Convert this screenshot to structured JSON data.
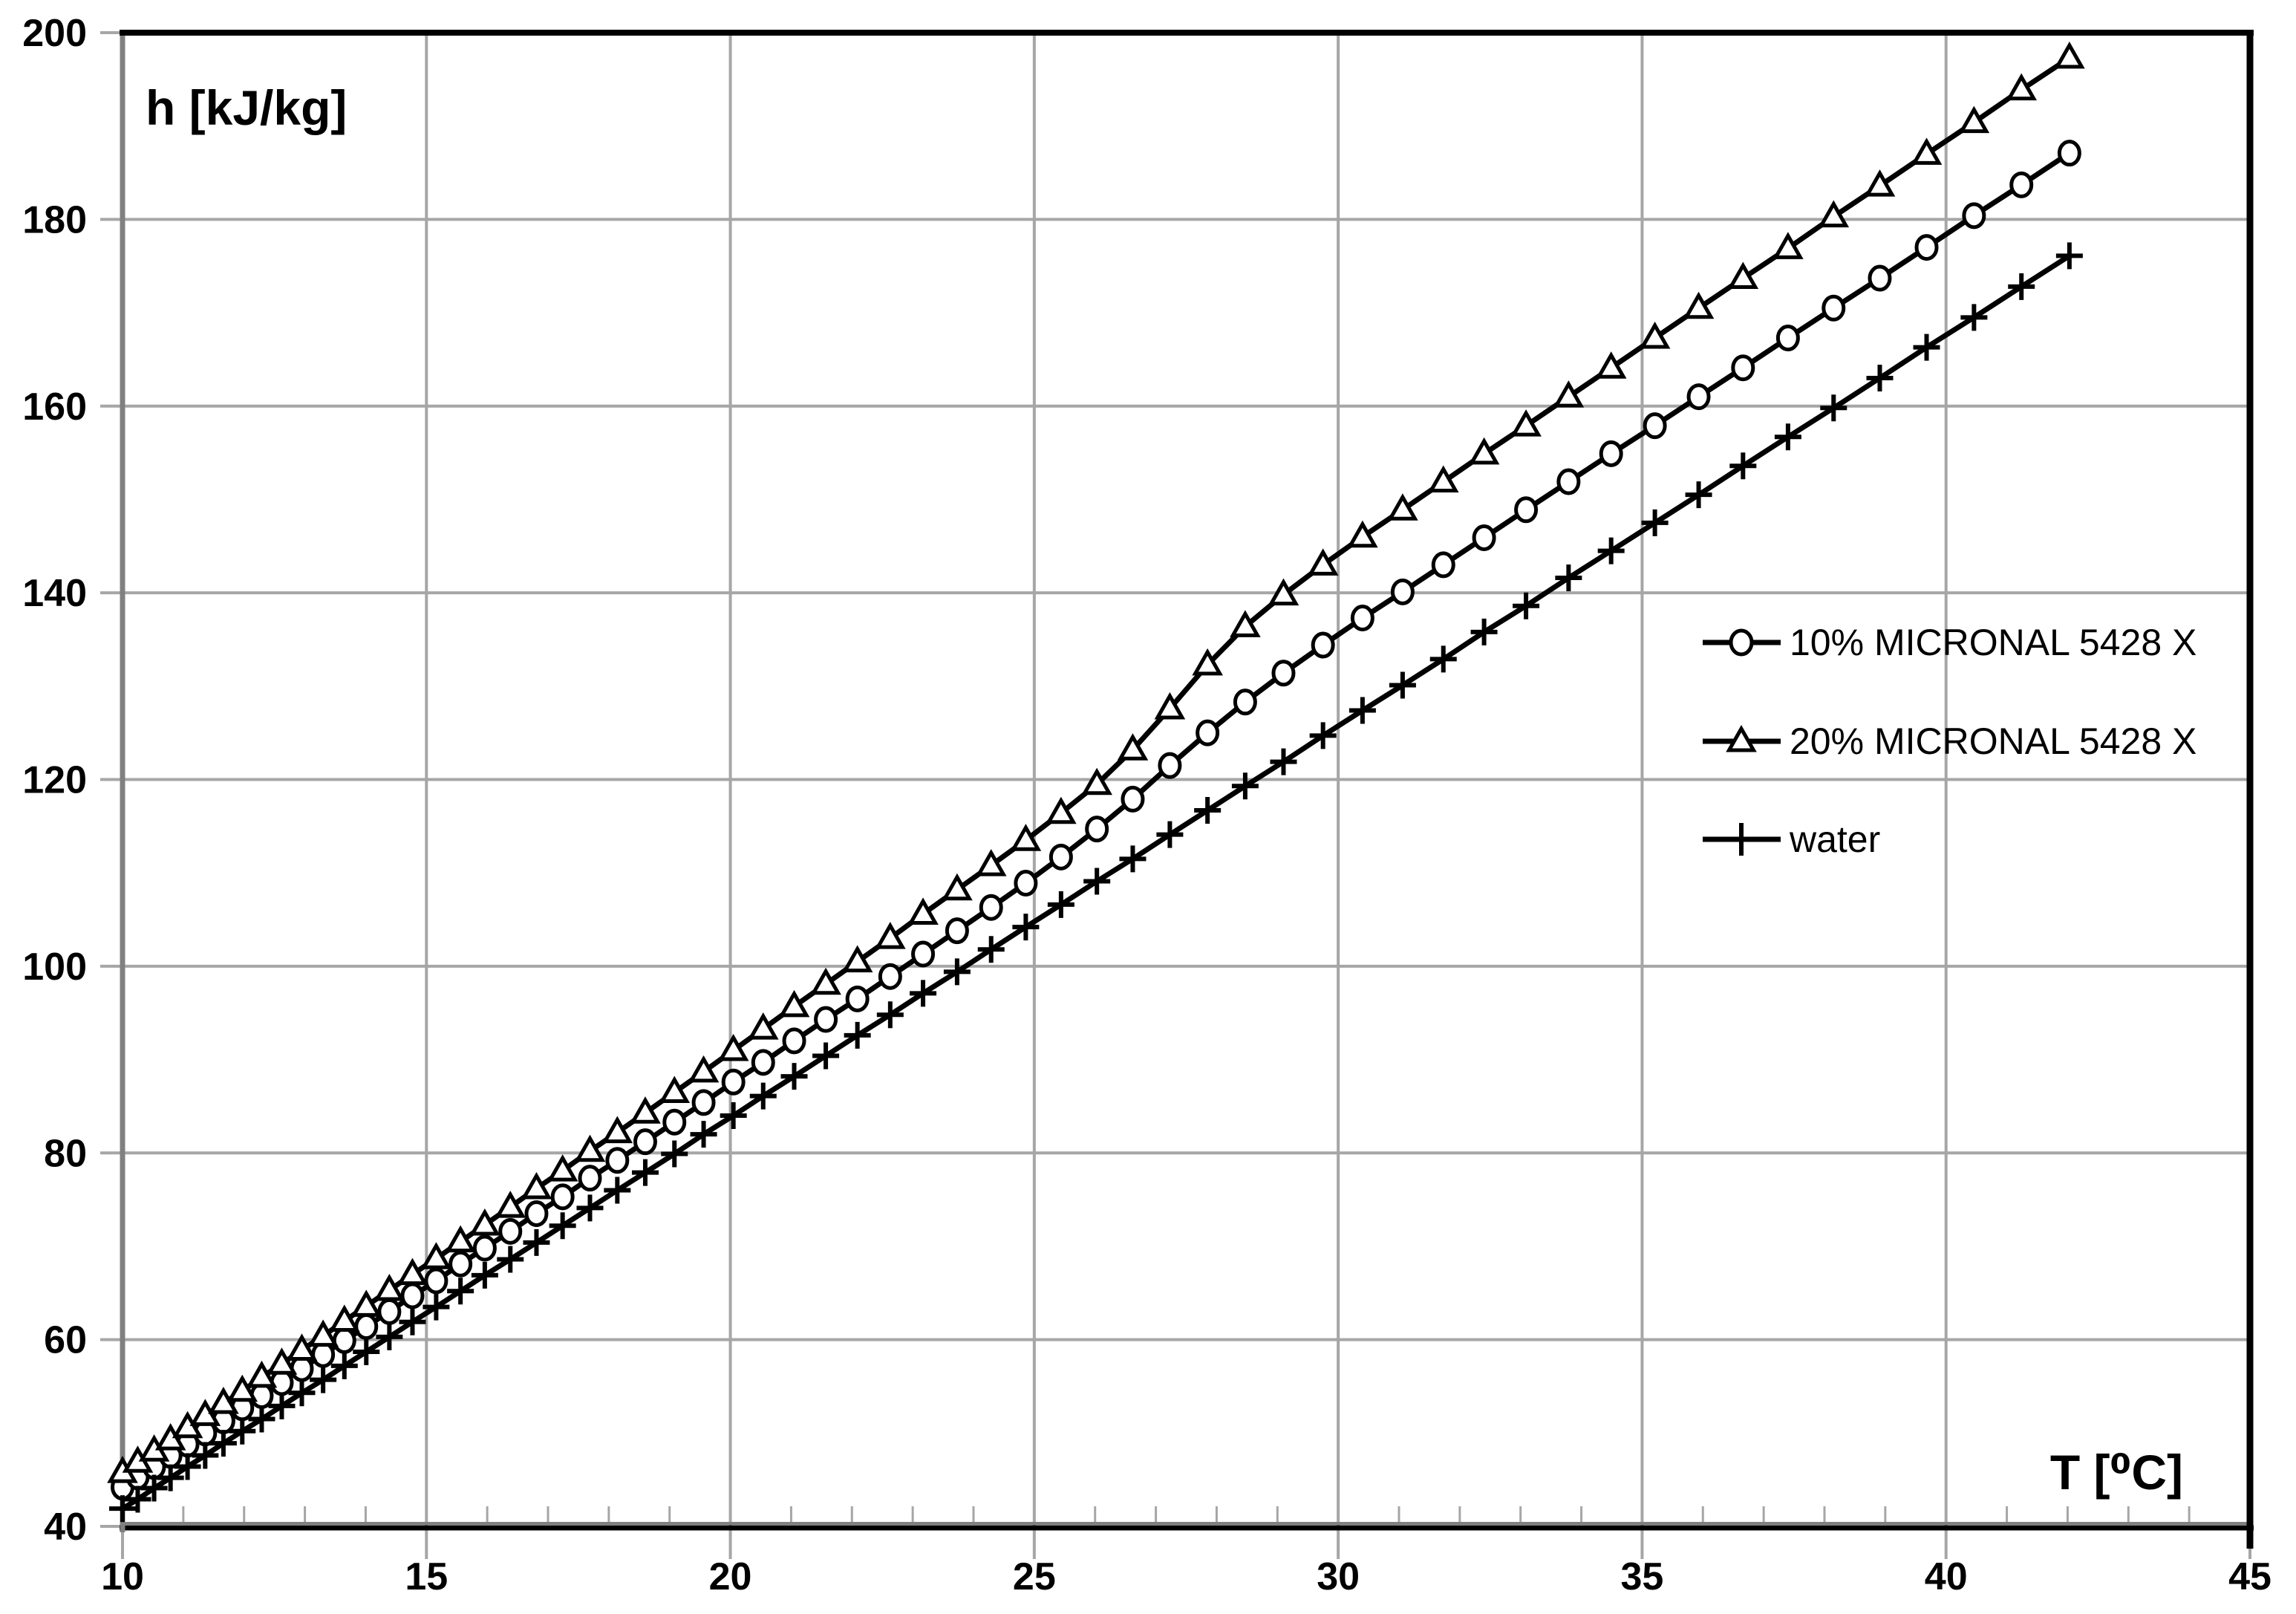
{
  "chart_data": {
    "type": "line",
    "title": "",
    "x_label": "T [⁰C]",
    "y_label": "h [kJ/kg]",
    "xlim": [
      10,
      45
    ],
    "ylim": [
      40,
      200
    ],
    "x_ticks": [
      10,
      15,
      20,
      25,
      30,
      35,
      40,
      45
    ],
    "y_ticks": [
      40,
      60,
      80,
      100,
      120,
      140,
      160,
      180,
      200
    ],
    "x_minor_tick_step": 1,
    "grid": true,
    "grid_color": "#a6a6a6",
    "axis_color": "#808080",
    "frame_color": "#000000",
    "series_color": "#000000",
    "legend_position": "right-middle",
    "series": [
      {
        "name": "10% MICRONAL 5428 X",
        "marker": "circle",
        "color": "#000000",
        "points": [
          [
            10,
            44.2
          ],
          [
            10.25,
            45.3
          ],
          [
            10.52,
            46.4
          ],
          [
            10.79,
            47.6
          ],
          [
            11.07,
            48.8
          ],
          [
            11.36,
            50
          ],
          [
            11.66,
            51.3
          ],
          [
            11.97,
            52.7
          ],
          [
            12.29,
            54
          ],
          [
            12.62,
            55.4
          ],
          [
            12.95,
            56.9
          ],
          [
            13.3,
            58.4
          ],
          [
            13.65,
            59.9
          ],
          [
            14.01,
            61.4
          ],
          [
            14.39,
            63
          ],
          [
            14.77,
            64.7
          ],
          [
            15.16,
            66.3
          ],
          [
            15.56,
            68.1
          ],
          [
            15.96,
            69.8
          ],
          [
            16.38,
            71.6
          ],
          [
            16.81,
            73.5
          ],
          [
            17.24,
            75.3
          ],
          [
            17.69,
            77.3
          ],
          [
            18.14,
            79.2
          ],
          [
            18.6,
            81.2
          ],
          [
            19.08,
            83.3
          ],
          [
            19.56,
            85.4
          ],
          [
            20.05,
            87.6
          ],
          [
            20.54,
            89.7
          ],
          [
            21.05,
            92
          ],
          [
            21.57,
            94.3
          ],
          [
            22.09,
            96.5
          ],
          [
            22.63,
            98.9
          ],
          [
            23.17,
            101.3
          ],
          [
            23.73,
            103.8
          ],
          [
            24.29,
            106.3
          ],
          [
            24.86,
            108.9
          ],
          [
            25.44,
            111.7
          ],
          [
            26.03,
            114.7
          ],
          [
            26.62,
            117.9
          ],
          [
            27.23,
            121.5
          ],
          [
            27.85,
            125
          ],
          [
            28.47,
            128.3
          ],
          [
            29.1,
            131.4
          ],
          [
            29.75,
            134.4
          ],
          [
            30.4,
            137.3
          ],
          [
            31.06,
            140.1
          ],
          [
            31.73,
            143
          ],
          [
            32.4,
            145.9
          ],
          [
            33.09,
            148.9
          ],
          [
            33.79,
            151.9
          ],
          [
            34.49,
            154.9
          ],
          [
            35.21,
            157.9
          ],
          [
            35.93,
            161
          ],
          [
            36.66,
            164.1
          ],
          [
            37.4,
            167.3
          ],
          [
            38.15,
            170.5
          ],
          [
            38.91,
            173.7
          ],
          [
            39.68,
            177
          ],
          [
            40.46,
            180.4
          ],
          [
            41.24,
            183.7
          ],
          [
            42.03,
            187.1
          ]
        ]
      },
      {
        "name": "20% MICRONAL 5428 X",
        "marker": "triangle-up",
        "color": "#000000",
        "points": [
          [
            10,
            45.8
          ],
          [
            10.25,
            46.9
          ],
          [
            10.52,
            48.1
          ],
          [
            10.79,
            49.3
          ],
          [
            11.07,
            50.6
          ],
          [
            11.36,
            51.9
          ],
          [
            11.66,
            53.2
          ],
          [
            11.97,
            54.5
          ],
          [
            12.29,
            56
          ],
          [
            12.62,
            57.4
          ],
          [
            12.95,
            58.9
          ],
          [
            13.3,
            60.4
          ],
          [
            13.65,
            62
          ],
          [
            14.01,
            63.6
          ],
          [
            14.39,
            65.3
          ],
          [
            14.77,
            67
          ],
          [
            15.16,
            68.7
          ],
          [
            15.56,
            70.5
          ],
          [
            15.96,
            72.3
          ],
          [
            16.38,
            74.2
          ],
          [
            16.81,
            76.2
          ],
          [
            17.24,
            78.1
          ],
          [
            17.69,
            80.2
          ],
          [
            18.14,
            82.2
          ],
          [
            18.6,
            84.3
          ],
          [
            19.08,
            86.5
          ],
          [
            19.56,
            88.7
          ],
          [
            20.05,
            91
          ],
          [
            20.54,
            93.3
          ],
          [
            21.05,
            95.7
          ],
          [
            21.57,
            98.1
          ],
          [
            22.09,
            100.5
          ],
          [
            22.63,
            103
          ],
          [
            23.17,
            105.6
          ],
          [
            23.73,
            108.2
          ],
          [
            24.29,
            110.8
          ],
          [
            24.86,
            113.5
          ],
          [
            25.44,
            116.4
          ],
          [
            26.03,
            119.5
          ],
          [
            26.62,
            123.2
          ],
          [
            27.23,
            127.6
          ],
          [
            27.85,
            132.3
          ],
          [
            28.47,
            136.4
          ],
          [
            29.1,
            139.8
          ],
          [
            29.75,
            143
          ],
          [
            30.4,
            146
          ],
          [
            31.06,
            148.9
          ],
          [
            31.73,
            151.9
          ],
          [
            32.4,
            154.9
          ],
          [
            33.09,
            157.9
          ],
          [
            33.79,
            161
          ],
          [
            34.49,
            164.1
          ],
          [
            35.21,
            167.3
          ],
          [
            35.93,
            170.5
          ],
          [
            36.66,
            173.7
          ],
          [
            37.4,
            176.9
          ],
          [
            38.15,
            180.3
          ],
          [
            38.91,
            183.6
          ],
          [
            39.68,
            187
          ],
          [
            40.46,
            190.4
          ],
          [
            41.24,
            193.9
          ],
          [
            42.03,
            197.3
          ]
        ]
      },
      {
        "name": "water",
        "marker": "plus",
        "color": "#000000",
        "points": [
          [
            10,
            41.9
          ],
          [
            10.25,
            42.9
          ],
          [
            10.52,
            44.1
          ],
          [
            10.79,
            45.2
          ],
          [
            11.07,
            46.4
          ],
          [
            11.36,
            47.6
          ],
          [
            11.66,
            48.9
          ],
          [
            11.97,
            50.2
          ],
          [
            12.29,
            51.5
          ],
          [
            12.62,
            52.9
          ],
          [
            12.95,
            54.3
          ],
          [
            13.3,
            55.7
          ],
          [
            13.65,
            57.2
          ],
          [
            14.01,
            58.7
          ],
          [
            14.39,
            60.3
          ],
          [
            14.77,
            61.9
          ],
          [
            15.16,
            63.5
          ],
          [
            15.56,
            65.2
          ],
          [
            15.96,
            66.9
          ],
          [
            16.38,
            68.6
          ],
          [
            16.81,
            70.4
          ],
          [
            17.24,
            72.2
          ],
          [
            17.69,
            74.1
          ],
          [
            18.14,
            76
          ],
          [
            18.6,
            77.9
          ],
          [
            19.08,
            79.9
          ],
          [
            19.56,
            82
          ],
          [
            20.05,
            84
          ],
          [
            20.54,
            86.1
          ],
          [
            21.05,
            88.2
          ],
          [
            21.57,
            90.4
          ],
          [
            22.09,
            92.6
          ],
          [
            22.63,
            94.8
          ],
          [
            23.17,
            97.1
          ],
          [
            23.73,
            99.4
          ],
          [
            24.29,
            101.8
          ],
          [
            24.86,
            104.2
          ],
          [
            25.44,
            106.6
          ],
          [
            26.03,
            109.1
          ],
          [
            26.62,
            111.5
          ],
          [
            27.23,
            114.1
          ],
          [
            27.85,
            116.7
          ],
          [
            28.47,
            119.3
          ],
          [
            29.1,
            121.9
          ],
          [
            29.75,
            124.7
          ],
          [
            30.4,
            127.4
          ],
          [
            31.06,
            130.1
          ],
          [
            31.73,
            132.9
          ],
          [
            32.4,
            135.8
          ],
          [
            33.09,
            138.6
          ],
          [
            33.79,
            141.6
          ],
          [
            34.49,
            144.5
          ],
          [
            35.21,
            147.5
          ],
          [
            35.93,
            150.5
          ],
          [
            36.66,
            153.6
          ],
          [
            37.4,
            156.7
          ],
          [
            38.15,
            159.8
          ],
          [
            38.91,
            163
          ],
          [
            39.68,
            166.3
          ],
          [
            40.46,
            169.5
          ],
          [
            41.24,
            172.8
          ],
          [
            42.03,
            176.1
          ]
        ]
      }
    ]
  },
  "legend": {
    "items": [
      {
        "label": "10% MICRONAL 5428 X",
        "marker": "circle"
      },
      {
        "label": "20% MICRONAL 5428 X",
        "marker": "triangle-up"
      },
      {
        "label": "water",
        "marker": "plus"
      }
    ]
  }
}
